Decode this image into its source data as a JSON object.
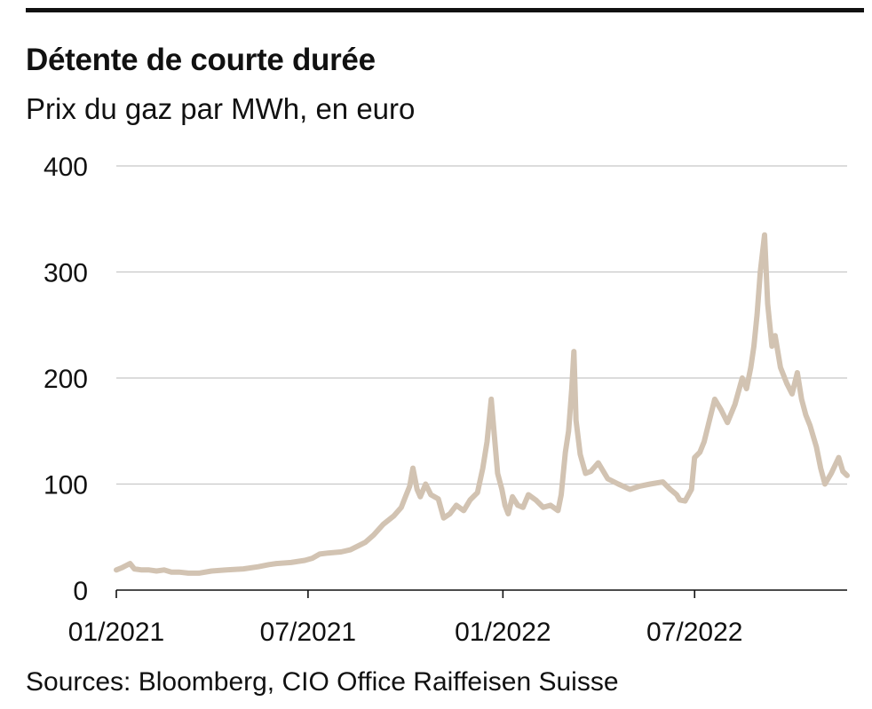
{
  "header": {
    "title": "Détente de courte durée",
    "subtitle": "Prix du gaz par MWh, en euro"
  },
  "footer": {
    "source": "Sources: Bloomberg, CIO Office Raiffeisen Suisse"
  },
  "chart_data": {
    "type": "line",
    "title": "Détente de courte durée",
    "subtitle": "Prix du gaz par MWh, en euro",
    "xlabel": "",
    "ylabel": "",
    "ylim": [
      0,
      400
    ],
    "xlim": [
      "2021-01-01",
      "2022-11-22"
    ],
    "yticks": [
      0,
      100,
      200,
      300,
      400
    ],
    "xticks": [
      {
        "date": "2021-01-01",
        "label": "01/2021"
      },
      {
        "date": "2021-07-01",
        "label": "07/2021"
      },
      {
        "date": "2022-01-01",
        "label": "01/2022"
      },
      {
        "date": "2022-07-01",
        "label": "07/2022"
      }
    ],
    "grid": "horizontal",
    "line_color": "#d2c3b2",
    "series": [
      {
        "name": "",
        "x": [
          "2021-01-01",
          "2021-01-06",
          "2021-01-10",
          "2021-01-14",
          "2021-01-18",
          "2021-01-25",
          "2021-02-01",
          "2021-02-08",
          "2021-02-15",
          "2021-02-22",
          "2021-03-01",
          "2021-03-10",
          "2021-03-20",
          "2021-04-01",
          "2021-04-15",
          "2021-05-01",
          "2021-05-15",
          "2021-05-25",
          "2021-06-01",
          "2021-06-15",
          "2021-06-28",
          "2021-07-05",
          "2021-07-12",
          "2021-07-20",
          "2021-08-01",
          "2021-08-10",
          "2021-08-18",
          "2021-08-24",
          "2021-09-01",
          "2021-09-10",
          "2021-09-20",
          "2021-09-27",
          "2021-10-01",
          "2021-10-05",
          "2021-10-08",
          "2021-10-12",
          "2021-10-15",
          "2021-10-20",
          "2021-10-25",
          "2021-11-01",
          "2021-11-06",
          "2021-11-12",
          "2021-11-18",
          "2021-11-25",
          "2021-12-01",
          "2021-12-08",
          "2021-12-13",
          "2021-12-17",
          "2021-12-21",
          "2021-12-24",
          "2021-12-27",
          "2021-12-31",
          "2022-01-03",
          "2022-01-06",
          "2022-01-10",
          "2022-01-15",
          "2022-01-20",
          "2022-01-25",
          "2022-02-01",
          "2022-02-08",
          "2022-02-15",
          "2022-02-22",
          "2022-02-25",
          "2022-03-01",
          "2022-03-04",
          "2022-03-07",
          "2022-03-09",
          "2022-03-11",
          "2022-03-15",
          "2022-03-20",
          "2022-03-25",
          "2022-04-01",
          "2022-04-10",
          "2022-04-20",
          "2022-05-01",
          "2022-05-10",
          "2022-05-20",
          "2022-06-01",
          "2022-06-08",
          "2022-06-14",
          "2022-06-17",
          "2022-06-22",
          "2022-06-28",
          "2022-07-01",
          "2022-07-06",
          "2022-07-10",
          "2022-07-15",
          "2022-07-20",
          "2022-07-26",
          "2022-08-01",
          "2022-08-08",
          "2022-08-15",
          "2022-08-19",
          "2022-08-23",
          "2022-08-26",
          "2022-08-29",
          "2022-09-01",
          "2022-09-05",
          "2022-09-08",
          "2022-09-12",
          "2022-09-15",
          "2022-09-20",
          "2022-09-26",
          "2022-10-01",
          "2022-10-06",
          "2022-10-10",
          "2022-10-14",
          "2022-10-18",
          "2022-10-24",
          "2022-10-28",
          "2022-11-01",
          "2022-11-07",
          "2022-11-14",
          "2022-11-18",
          "2022-11-22"
        ],
        "values": [
          19,
          21,
          23,
          25,
          20,
          19,
          19,
          18,
          19,
          17,
          17,
          16,
          16,
          18,
          19,
          20,
          22,
          24,
          25,
          26,
          28,
          30,
          34,
          35,
          36,
          38,
          42,
          45,
          52,
          62,
          70,
          78,
          88,
          98,
          115,
          95,
          88,
          100,
          90,
          86,
          68,
          72,
          80,
          75,
          85,
          92,
          115,
          140,
          180,
          145,
          110,
          95,
          80,
          72,
          88,
          80,
          78,
          90,
          85,
          78,
          80,
          75,
          90,
          130,
          150,
          190,
          225,
          160,
          128,
          110,
          112,
          120,
          105,
          100,
          95,
          98,
          100,
          102,
          95,
          90,
          85,
          84,
          95,
          125,
          130,
          140,
          160,
          180,
          170,
          158,
          175,
          200,
          190,
          210,
          230,
          260,
          300,
          335,
          270,
          230,
          240,
          210,
          195,
          185,
          205,
          180,
          165,
          155,
          135,
          115,
          100,
          110,
          125,
          112,
          108
        ]
      }
    ]
  }
}
